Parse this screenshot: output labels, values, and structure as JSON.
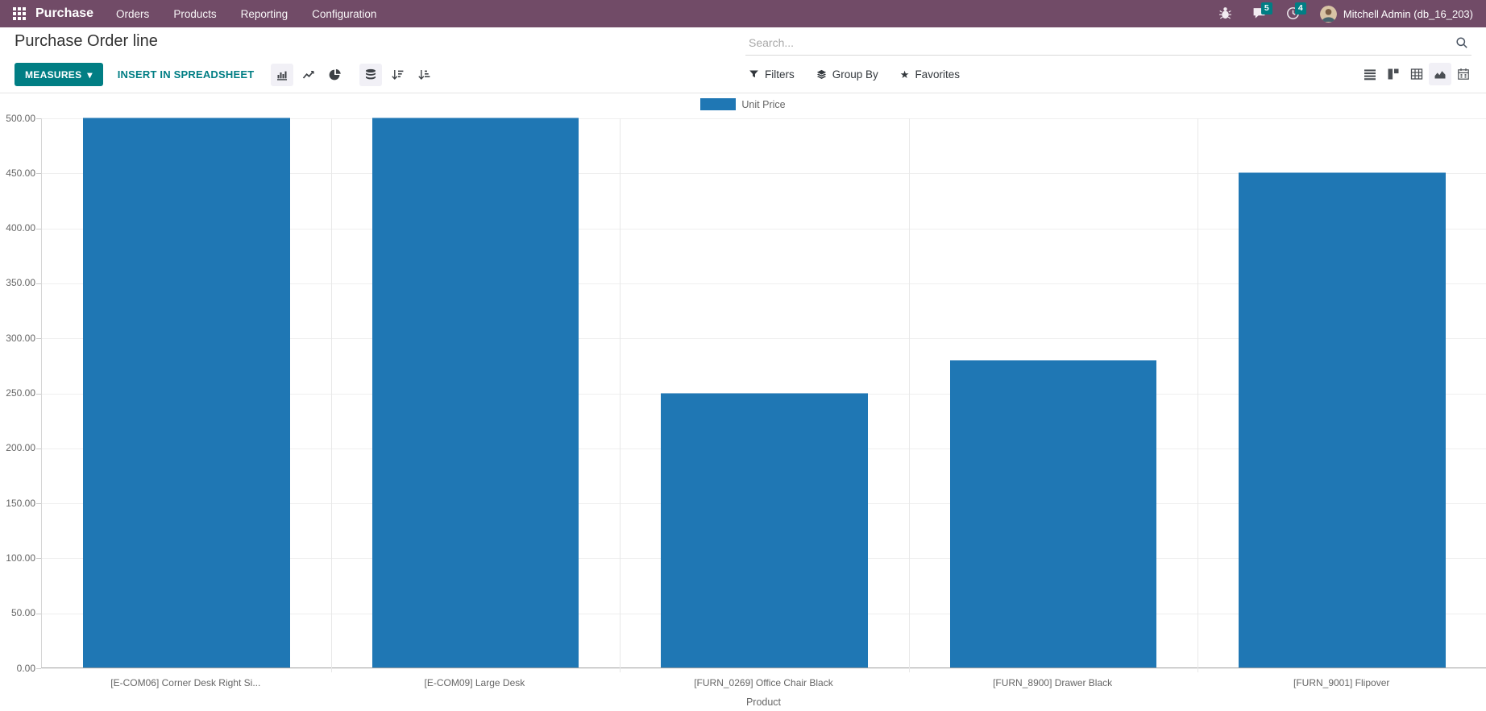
{
  "nav": {
    "app_name": "Purchase",
    "menu_items": [
      "Orders",
      "Products",
      "Reporting",
      "Configuration"
    ],
    "message_badge": "5",
    "activity_badge": "4",
    "user_name": "Mitchell Admin (db_16_203)"
  },
  "header": {
    "title": "Purchase Order line",
    "search_placeholder": "Search..."
  },
  "toolbar": {
    "measures_label": "MEASURES",
    "insert_label": "INSERT IN SPREADSHEET",
    "filters_label": "Filters",
    "group_by_label": "Group By",
    "favorites_label": "Favorites"
  },
  "icons": {
    "caret_down": "▾",
    "star": "★"
  },
  "colors": {
    "nav_purple": "#714B67",
    "accent_teal": "#017e84",
    "bar_blue": "#1f77b4",
    "grid_gray": "#efefef",
    "tick_text": "#666666"
  },
  "chart_data": {
    "type": "bar",
    "title": "",
    "legend": [
      {
        "label": "Unit Price",
        "color": "#1f77b4"
      }
    ],
    "categories": [
      "[E-COM06] Corner Desk Right Si...",
      "[E-COM09] Large Desk",
      "[FURN_0269] Office Chair Black",
      "[FURN_8900] Drawer Black",
      "[FURN_9001] Flipover"
    ],
    "series": [
      {
        "name": "Unit Price",
        "values": [
          500,
          500,
          250,
          280,
          450
        ]
      }
    ],
    "xlabel": "Product",
    "ylabel": "",
    "ylim": [
      0,
      500
    ],
    "ytick_step": 50,
    "ytick_labels": [
      "0.00",
      "50.00",
      "100.00",
      "150.00",
      "200.00",
      "250.00",
      "300.00",
      "350.00",
      "400.00",
      "450.00",
      "500.00"
    ],
    "grid": true,
    "legend_position": "top-center",
    "stacked": true
  }
}
